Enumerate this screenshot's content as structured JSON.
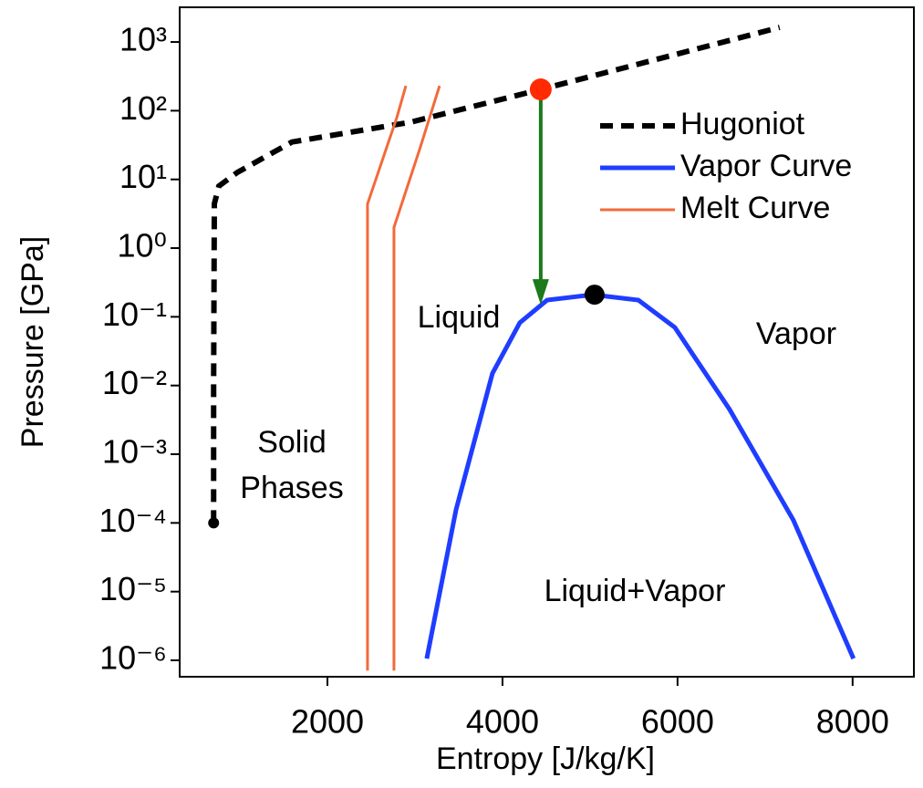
{
  "chart_data": {
    "type": "line",
    "xlabel": "Entropy [J/kg/K]",
    "ylabel": "Pressure [GPa]",
    "xlim": [
      312,
      8700
    ],
    "xticks": [
      2000,
      4000,
      6000,
      8000
    ],
    "ylim": [
      5.77e-07,
      3200
    ],
    "ylog": true,
    "yticks": [
      {
        "value": 1e-06,
        "label": "10⁻⁶"
      },
      {
        "value": 1e-05,
        "label": "10⁻⁵"
      },
      {
        "value": 0.0001,
        "label": "10⁻⁴"
      },
      {
        "value": 0.001,
        "label": "10⁻³"
      },
      {
        "value": 0.01,
        "label": "10⁻²"
      },
      {
        "value": 0.1,
        "label": "10⁻¹"
      },
      {
        "value": 1,
        "label": "10⁰"
      },
      {
        "value": 10,
        "label": "10¹"
      },
      {
        "value": 100,
        "label": "10²"
      },
      {
        "value": 1000,
        "label": "10³"
      }
    ],
    "series": [
      {
        "name": "Hugoniot",
        "color": "#000000",
        "linestyle": "dashed",
        "x": [
          700,
          700,
          708,
          760,
          969,
          1594,
          2948,
          4437,
          7166
        ],
        "values": [
          0.0001,
          0.01,
          4.4,
          8,
          12.6,
          35,
          68,
          204,
          1630
        ]
      },
      {
        "name": "Vapor Curve",
        "color": "#1f3dff",
        "linestyle": "solid",
        "x": [
          3135,
          3469,
          3885,
          4198,
          4510,
          5031,
          5552,
          5969,
          6594,
          7323,
          8010
        ],
        "values": [
          1.06e-06,
          0.000155,
          0.015,
          0.082,
          0.175,
          0.21,
          0.175,
          0.07,
          0.0045,
          0.00011,
          1.06e-06
        ]
      },
      {
        "name": "Melt Curve",
        "color": "#f26a3a",
        "linestyle": "solid",
        "x": [
          2458,
          2458,
          2792,
          2896,
          null,
          2760,
          2760,
          3052,
          3281
        ],
        "values": [
          7.1e-07,
          4.4,
          79,
          230,
          null,
          7.1e-07,
          2.0,
          27,
          230
        ]
      }
    ],
    "points": [
      {
        "x": 700,
        "y": 0.0001,
        "color": "#000000"
      },
      {
        "x": 4437,
        "y": 204,
        "color": "#ff2a00"
      },
      {
        "x": 5052,
        "y": 0.21,
        "color": "#000000"
      }
    ],
    "arrow": {
      "x": 4437,
      "y_from": 204,
      "y_to": 0.15,
      "color": "#1b7a1b"
    },
    "annotations": [
      "Solid",
      "Phases",
      "Liquid",
      "Vapor",
      "Liquid+Vapor"
    ],
    "legend": "upper right"
  }
}
